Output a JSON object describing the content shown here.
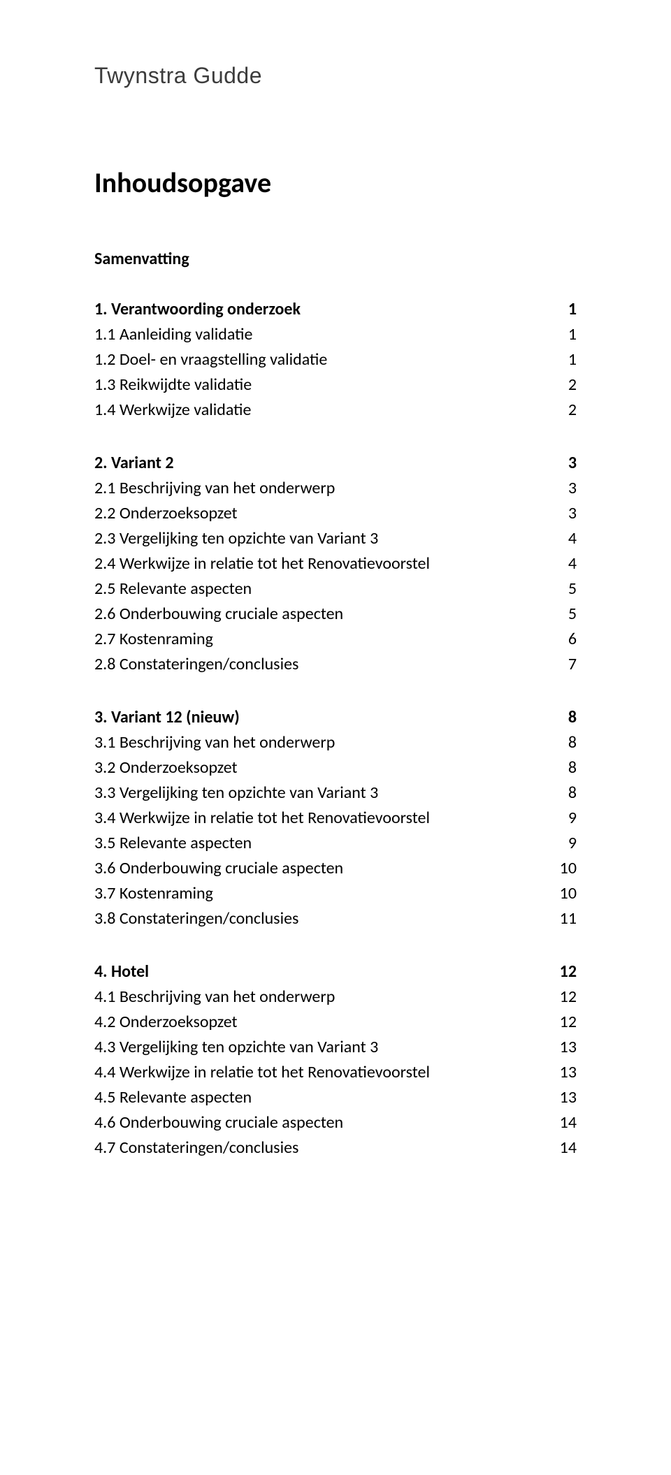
{
  "brand": "Twynstra Gudde",
  "title": "Inhoudsopgave",
  "summary_heading": "Samenvatting",
  "colors": {
    "text": "#000000",
    "brand_text": "#3c3c3c",
    "background": "#ffffff"
  },
  "typography": {
    "brand_fontsize": 32,
    "title_fontsize": 40,
    "body_fontsize": 24,
    "line_height": 1.5
  },
  "sections": [
    {
      "heading": {
        "label": "1. Verantwoording onderzoek",
        "page": "1"
      },
      "items": [
        {
          "label": "1.1 Aanleiding validatie",
          "page": "1"
        },
        {
          "label": "1.2 Doel- en vraagstelling validatie",
          "page": "1"
        },
        {
          "label": "1.3 Reikwijdte validatie",
          "page": "2"
        },
        {
          "label": "1.4 Werkwijze validatie",
          "page": "2"
        }
      ]
    },
    {
      "heading": {
        "label": "2. Variant 2",
        "page": "3"
      },
      "items": [
        {
          "label": "2.1 Beschrijving van het onderwerp",
          "page": "3"
        },
        {
          "label": "2.2 Onderzoeksopzet",
          "page": "3"
        },
        {
          "label": "2.3 Vergelijking ten opzichte van Variant 3",
          "page": "4"
        },
        {
          "label": "2.4 Werkwijze in relatie tot het Renovatievoorstel",
          "page": "4"
        },
        {
          "label": "2.5 Relevante aspecten",
          "page": "5"
        },
        {
          "label": "2.6 Onderbouwing cruciale aspecten",
          "page": "5"
        },
        {
          "label": "2.7 Kostenraming",
          "page": "6"
        },
        {
          "label": "2.8 Constateringen/conclusies",
          "page": "7"
        }
      ]
    },
    {
      "heading": {
        "label": "3. Variant 12 (nieuw)",
        "page": "8"
      },
      "items": [
        {
          "label": "3.1 Beschrijving van het onderwerp",
          "page": "8"
        },
        {
          "label": "3.2 Onderzoeksopzet",
          "page": "8"
        },
        {
          "label": "3.3 Vergelijking ten opzichte van Variant 3",
          "page": "8"
        },
        {
          "label": "3.4 Werkwijze in relatie tot het Renovatievoorstel",
          "page": "9"
        },
        {
          "label": "3.5 Relevante aspecten",
          "page": "9"
        },
        {
          "label": "3.6 Onderbouwing cruciale aspecten",
          "page": "10"
        },
        {
          "label": "3.7 Kostenraming",
          "page": "10"
        },
        {
          "label": "3.8 Constateringen/conclusies",
          "page": "11"
        }
      ]
    },
    {
      "heading": {
        "label": "4. Hotel",
        "page": "12"
      },
      "items": [
        {
          "label": "4.1 Beschrijving van het onderwerp",
          "page": "12"
        },
        {
          "label": "4.2 Onderzoeksopzet",
          "page": "12"
        },
        {
          "label": "4.3 Vergelijking ten opzichte van Variant 3",
          "page": "13"
        },
        {
          "label": "4.4 Werkwijze in relatie tot het Renovatievoorstel",
          "page": "13"
        },
        {
          "label": "4.5 Relevante aspecten",
          "page": "13"
        },
        {
          "label": "4.6 Onderbouwing cruciale aspecten",
          "page": "14"
        },
        {
          "label": "4.7 Constateringen/conclusies",
          "page": "14"
        }
      ]
    }
  ]
}
